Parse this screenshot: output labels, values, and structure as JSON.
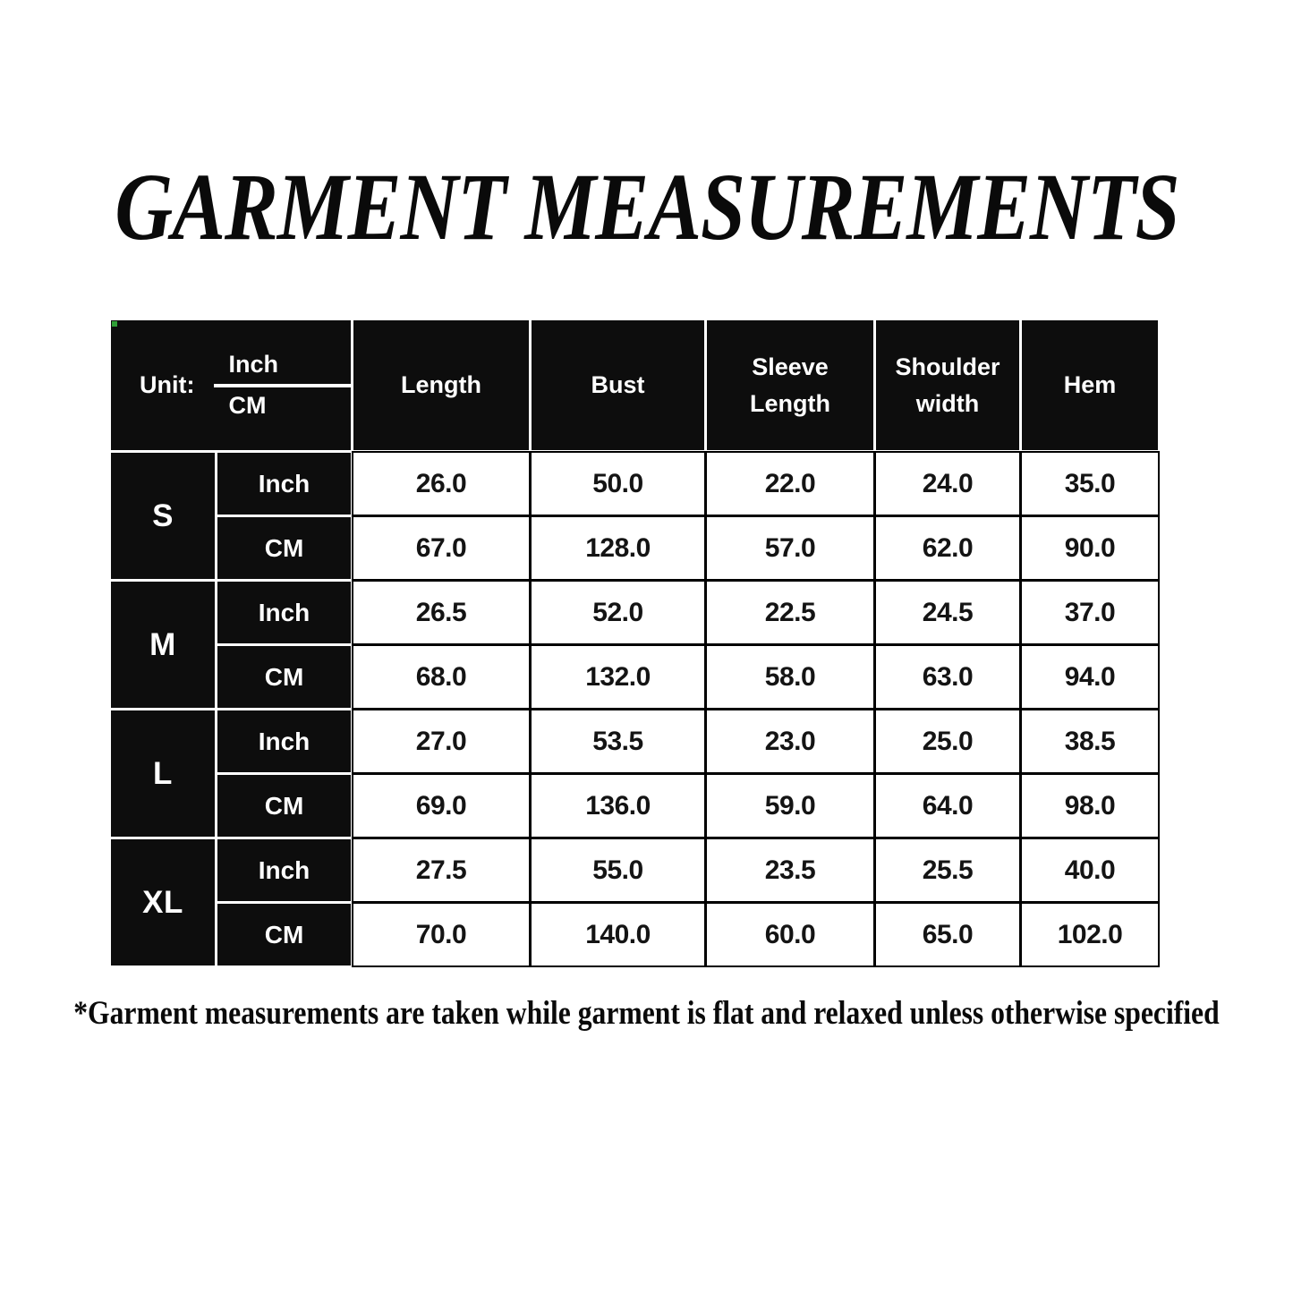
{
  "title": "GARMENT MEASUREMENTS",
  "footnote": "*Garment measurements are taken while garment is flat and relaxed unless otherwise specified",
  "table": {
    "unit_label": "Unit:",
    "unit_top": "Inch",
    "unit_bottom": "CM",
    "columns": [
      "Length",
      "Bust",
      "Sleeve Length",
      "Shoulder width",
      "Hem"
    ],
    "row_unit_labels": [
      "Inch",
      "CM"
    ],
    "rows": [
      {
        "size": "S",
        "inch": [
          "26.0",
          "50.0",
          "22.0",
          "24.0",
          "35.0"
        ],
        "cm": [
          "67.0",
          "128.0",
          "57.0",
          "62.0",
          "90.0"
        ]
      },
      {
        "size": "M",
        "inch": [
          "26.5",
          "52.0",
          "22.5",
          "24.5",
          "37.0"
        ],
        "cm": [
          "68.0",
          "132.0",
          "58.0",
          "63.0",
          "94.0"
        ]
      },
      {
        "size": "L",
        "inch": [
          "27.0",
          "53.5",
          "23.0",
          "25.0",
          "38.5"
        ],
        "cm": [
          "69.0",
          "136.0",
          "59.0",
          "64.0",
          "98.0"
        ]
      },
      {
        "size": "XL",
        "inch": [
          "27.5",
          "55.0",
          "23.5",
          "25.5",
          "40.0"
        ],
        "cm": [
          "70.0",
          "140.0",
          "60.0",
          "65.0",
          "102.0"
        ]
      }
    ]
  },
  "colors": {
    "cell_black": "#0d0d0d",
    "cell_white": "#ffffff",
    "text_dark": "#141414",
    "corner_mark_green": "#2f9e36"
  }
}
